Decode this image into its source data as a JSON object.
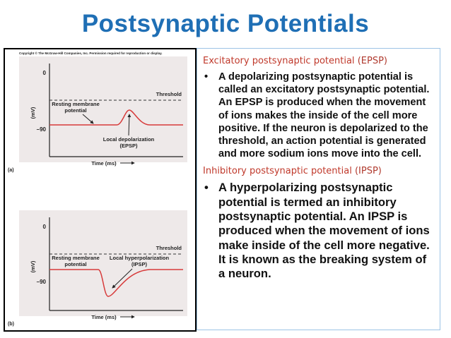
{
  "title": "Postsynaptic Potentials",
  "figure": {
    "copyright": "Copyright © The McGraw-Hill Companies, Inc. Permission required for reproduction or display.",
    "panels": [
      {
        "zero": "0",
        "threshold": "Threshold",
        "axis": "(mV)",
        "resting": [
          "Resting membrane",
          "potential"
        ],
        "minus90": "–90",
        "local": [
          "Local depolarization",
          "(EPSP)"
        ],
        "time": "Time (ms)",
        "tag": "(a)"
      },
      {
        "zero": "0",
        "threshold": "Threshold",
        "axis": "(mV)",
        "resting": [
          "Resting membrane",
          "potential"
        ],
        "minus90": "–90",
        "local": [
          "Local hyperpolarization",
          "(IPSP)"
        ],
        "time": "Time (ms)",
        "tag": "(b)"
      }
    ]
  },
  "sections": [
    {
      "heading": "Excitatory postsynaptic potential",
      "abbr": "(EPSP)",
      "bullet": "A depolarizing postsynaptic potential is called an excitatory postsynaptic potential. An EPSP is produced when the movement of ions makes the inside of the cell more positive. If the neuron is depolarized to the threshold, an action potential is generated and more sodium ions move into the cell."
    },
    {
      "heading": "Inhibitory postsynaptic potential",
      "abbr": "(IPSP)",
      "bullet": "A hyperpolarizing postsynaptic potential is termed an inhibitory postsynaptic potential. An IPSP is produced when the movement of ions make inside of the cell more negative. It is known as the breaking system of a neuron."
    }
  ]
}
